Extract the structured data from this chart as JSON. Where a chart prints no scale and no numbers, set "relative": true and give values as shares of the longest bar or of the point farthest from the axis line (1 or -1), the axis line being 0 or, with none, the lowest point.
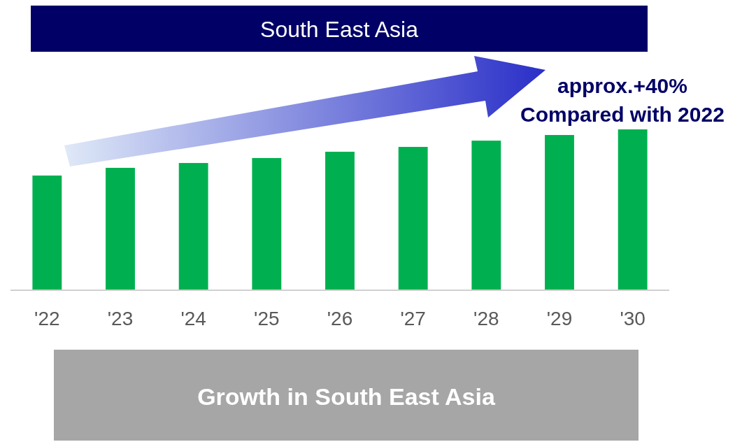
{
  "chart_data": {
    "type": "bar",
    "title": "South East Asia",
    "relative": true,
    "categories": [
      "'22",
      "'23",
      "'24",
      "'25",
      "'26",
      "'27",
      "'28",
      "'29",
      "'30"
    ],
    "values": [
      0.713,
      0.761,
      0.791,
      0.822,
      0.861,
      0.891,
      0.93,
      0.965,
      1
    ],
    "color": "#00b050",
    "annotations": [
      "approx.+40%",
      "Compared with 2022",
      "Growth in South East Asia"
    ]
  }
}
